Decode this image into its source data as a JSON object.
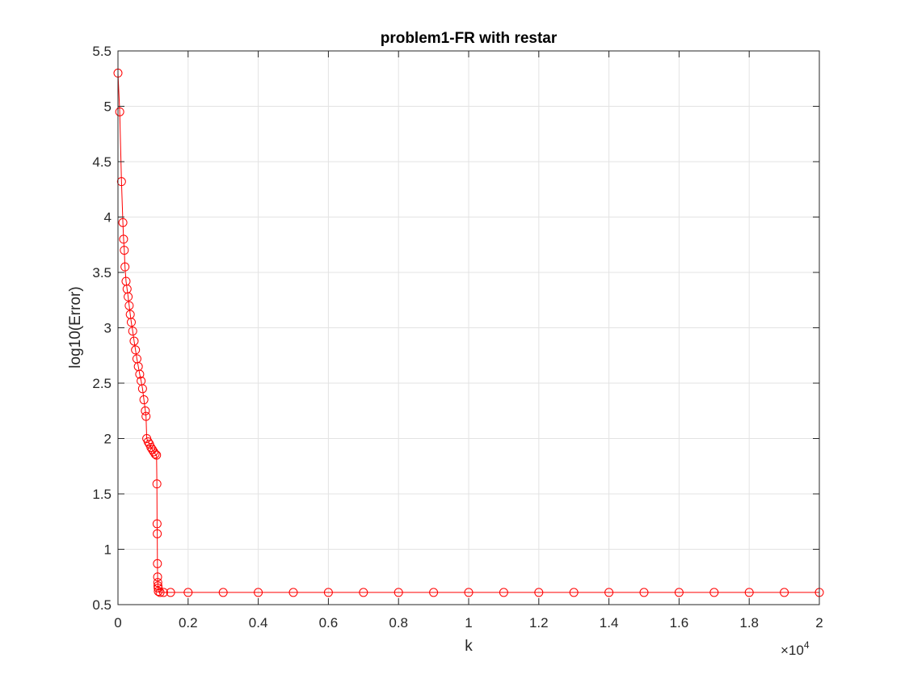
{
  "chart_data": {
    "type": "line",
    "title": "problem1-FR with restar",
    "xlabel": "k",
    "ylabel": "log10(Error)",
    "x_exponent_label": "×10",
    "x_exponent_power": "4",
    "xlim": [
      0,
      20000
    ],
    "ylim": [
      0.5,
      5.5
    ],
    "x_ticks": [
      0,
      2000,
      4000,
      6000,
      8000,
      10000,
      12000,
      14000,
      16000,
      18000,
      20000
    ],
    "x_tick_labels": [
      "0",
      "0.2",
      "0.4",
      "0.6",
      "0.8",
      "1",
      "1.2",
      "1.4",
      "1.6",
      "1.8",
      "2"
    ],
    "y_ticks": [
      0.5,
      1,
      1.5,
      2,
      2.5,
      3,
      3.5,
      4,
      4.5,
      5,
      5.5
    ],
    "y_tick_labels": [
      "0.5",
      "1",
      "1.5",
      "2",
      "2.5",
      "3",
      "3.5",
      "4",
      "4.5",
      "5",
      "5.5"
    ],
    "grid": true,
    "marker": "circle",
    "color": "#ff0000",
    "series": [
      {
        "x": [
          0,
          50,
          100,
          140,
          160,
          180,
          200,
          230,
          260,
          290,
          320,
          350,
          380,
          420,
          460,
          500,
          540,
          580,
          620,
          660,
          700,
          740,
          780,
          800,
          820,
          860,
          900,
          940,
          980,
          1020,
          1060,
          1100,
          1110,
          1115,
          1120,
          1125,
          1130,
          1135,
          1140,
          1145,
          1150,
          1200,
          1300,
          1500,
          2000,
          3000,
          4000,
          5000,
          6000,
          7000,
          8000,
          9000,
          10000,
          11000,
          12000,
          13000,
          14000,
          15000,
          16000,
          17000,
          18000,
          19000,
          20000
        ],
        "y": [
          5.3,
          4.95,
          4.32,
          3.95,
          3.8,
          3.7,
          3.55,
          3.42,
          3.35,
          3.28,
          3.2,
          3.12,
          3.05,
          2.97,
          2.88,
          2.8,
          2.72,
          2.65,
          2.58,
          2.52,
          2.45,
          2.35,
          2.25,
          2.2,
          2.0,
          1.97,
          1.95,
          1.92,
          1.9,
          1.88,
          1.86,
          1.85,
          1.59,
          1.23,
          1.14,
          0.87,
          0.75,
          0.7,
          0.67,
          0.65,
          0.62,
          0.61,
          0.61,
          0.61,
          0.61,
          0.61,
          0.61,
          0.61,
          0.61,
          0.61,
          0.61,
          0.61,
          0.61,
          0.61,
          0.61,
          0.61,
          0.61,
          0.61,
          0.61,
          0.61,
          0.61,
          0.61,
          0.61
        ]
      }
    ]
  }
}
